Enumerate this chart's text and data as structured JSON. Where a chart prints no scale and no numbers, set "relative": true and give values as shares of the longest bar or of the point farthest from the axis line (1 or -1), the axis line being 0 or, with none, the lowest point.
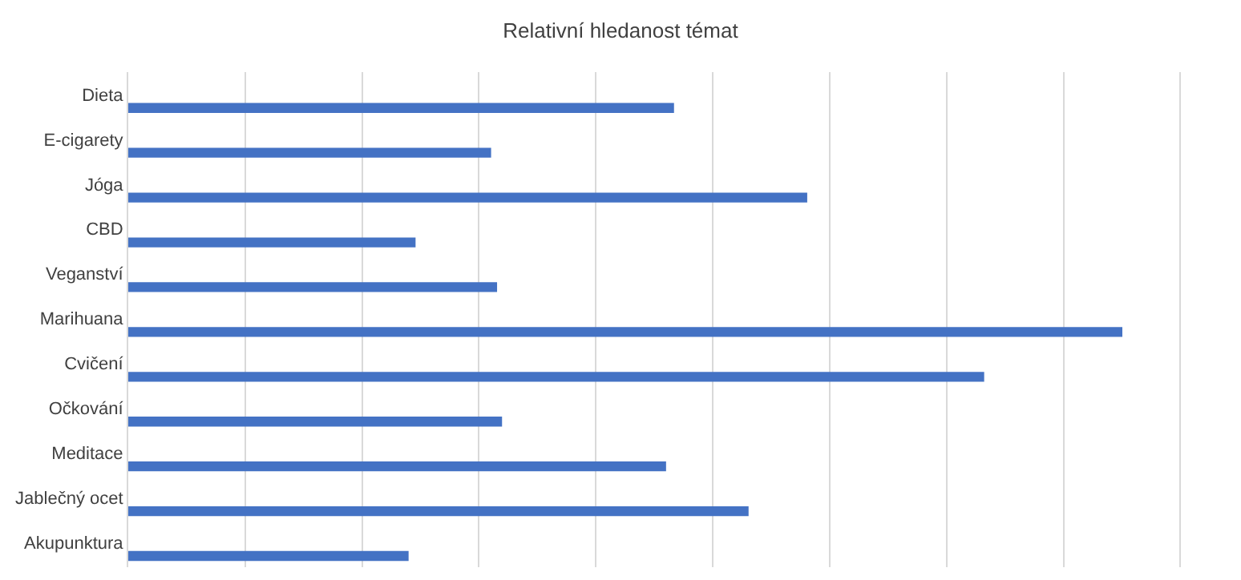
{
  "chart_data": {
    "type": "bar",
    "orientation": "horizontal",
    "relative": true,
    "title": "Relativní hledanost témat",
    "categories": [
      "Dieta",
      "E-cigarety",
      "Jóga",
      "CBD",
      "Veganství",
      "Marihuana",
      "Cvičení",
      "Očkování",
      "Meditace",
      "Jablečný ocet",
      "Akupunktura"
    ],
    "values": [
      0.549,
      0.365,
      0.683,
      0.289,
      0.371,
      1,
      0.861,
      0.376,
      0.541,
      0.624,
      0.282
    ],
    "color": "#4472c4",
    "grid": "x"
  }
}
